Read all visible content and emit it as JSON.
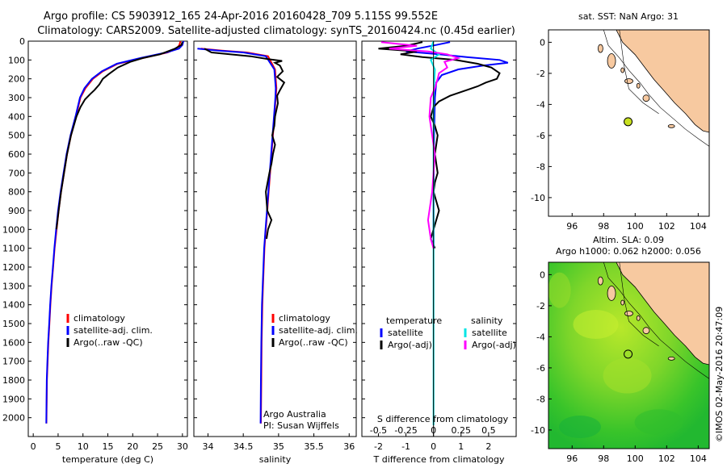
{
  "title": {
    "line1": "Argo profile: CS 5903912_165 24-Apr-2016 20160428_709 5.115S 99.552E",
    "line2": "Climatology: CARS2009. Satellite-adjusted climatology: synTS_20160424.nc (0.45d earlier)"
  },
  "credit": "©IMOS 02-May-2016 20:47:09",
  "colors": {
    "red": "#ff0000",
    "blue": "#0000ff",
    "black": "#000000",
    "cyan": "#00e5e5",
    "magenta": "#ff00ff",
    "land": "#f7c9a0",
    "sea_green": "#22cc22",
    "argo_dot": "#c8e020"
  },
  "chart_data": [
    {
      "id": "temperature",
      "type": "line",
      "xlabel": "temperature (deg C)",
      "ylabel": "",
      "xlim": [
        -1,
        31
      ],
      "ylim": [
        2100,
        0
      ],
      "xticks": [
        0,
        5,
        10,
        15,
        20,
        25,
        30
      ],
      "yticks": [
        0,
        100,
        200,
        300,
        400,
        500,
        600,
        700,
        800,
        900,
        1000,
        1100,
        1200,
        1300,
        1400,
        1500,
        1600,
        1700,
        1800,
        1900,
        2000
      ],
      "legend": [
        "climatology",
        "satellite-adj. clim.",
        "Argo(..raw -QC)"
      ],
      "series": [
        {
          "name": "climatology",
          "color": "red",
          "x": [
            29.6,
            29.4,
            28.8,
            27.0,
            22.0,
            17.0,
            14.0,
            12.0,
            10.5,
            9.5,
            8.6,
            7.6,
            6.8,
            6.2,
            5.6,
            5.1,
            4.7,
            4.3,
            4.0,
            3.7,
            3.45,
            3.25,
            3.05,
            2.9,
            2.75,
            2.65
          ],
          "y": [
            0,
            20,
            40,
            60,
            90,
            120,
            160,
            200,
            250,
            300,
            400,
            500,
            600,
            700,
            800,
            900,
            1000,
            1100,
            1200,
            1300,
            1400,
            1500,
            1600,
            1700,
            1800,
            2030
          ]
        },
        {
          "name": "satellite-adj. clim.",
          "color": "blue",
          "x": [
            30.2,
            30.0,
            29.3,
            26.8,
            21.5,
            16.8,
            13.8,
            11.8,
            10.3,
            9.4,
            8.5,
            7.5,
            6.7,
            6.1,
            5.5,
            5.0,
            4.6,
            4.25,
            3.95,
            3.65,
            3.4,
            3.2,
            3.0,
            2.85,
            2.72,
            2.62
          ],
          "y": [
            0,
            20,
            40,
            60,
            90,
            120,
            160,
            200,
            250,
            300,
            400,
            500,
            600,
            700,
            800,
            900,
            1000,
            1100,
            1200,
            1300,
            1400,
            1500,
            1600,
            1700,
            1800,
            2030
          ]
        },
        {
          "name": "Argo(..raw -QC)",
          "color": "black",
          "x": [
            30.0,
            29.8,
            28.5,
            25.5,
            22.0,
            19.5,
            17.0,
            15.2,
            14.0,
            13.3,
            12.3,
            11.5,
            10.4,
            9.5,
            8.7,
            7.6,
            6.8,
            6.2,
            5.6,
            5.1,
            4.65
          ],
          "y": [
            5,
            20,
            40,
            70,
            90,
            110,
            140,
            175,
            200,
            230,
            260,
            280,
            310,
            350,
            400,
            500,
            600,
            700,
            800,
            900,
            1000
          ]
        }
      ]
    },
    {
      "id": "salinity",
      "type": "line",
      "xlabel": "salinity",
      "xlim": [
        33.8,
        36.1
      ],
      "xticks": [
        34,
        34.5,
        35,
        35.5,
        36
      ],
      "xticklabels": [
        "34",
        "34.5",
        "35",
        "35.5",
        "36"
      ],
      "legend": [
        "climatology",
        "satellite-adj. clim.",
        "Argo(..raw -QC)"
      ],
      "annotation": [
        "Argo Australia",
        "PI: Susan Wijffels"
      ],
      "series": [
        {
          "name": "climatology",
          "color": "red",
          "x": [
            33.9,
            34.2,
            34.55,
            34.85,
            34.95,
            34.97,
            34.96,
            34.94,
            34.92,
            34.9,
            34.88,
            34.86,
            34.84,
            34.82,
            34.8,
            34.79,
            34.78,
            34.77,
            34.76,
            34.755,
            34.75
          ],
          "y": [
            40,
            50,
            60,
            80,
            150,
            250,
            300,
            400,
            500,
            600,
            700,
            800,
            900,
            1000,
            1100,
            1200,
            1300,
            1400,
            1600,
            1800,
            2030
          ]
        },
        {
          "name": "satellite-adj. clim.",
          "color": "blue",
          "x": [
            33.85,
            34.15,
            34.5,
            34.82,
            34.94,
            34.96,
            34.955,
            34.935,
            34.915,
            34.895,
            34.875,
            34.855,
            34.835,
            34.815,
            34.795,
            34.785,
            34.775,
            34.765,
            34.755,
            34.75,
            34.745
          ],
          "y": [
            40,
            50,
            60,
            80,
            150,
            250,
            300,
            400,
            500,
            600,
            700,
            800,
            900,
            1000,
            1100,
            1200,
            1300,
            1400,
            1600,
            1800,
            2030
          ]
        },
        {
          "name": "Argo(..raw -QC)",
          "color": "black",
          "x": [
            33.95,
            34.05,
            34.6,
            34.85,
            35.05,
            34.95,
            35.02,
            35.06,
            34.98,
            35.08,
            35.02,
            34.98,
            34.99,
            34.95,
            34.94,
            34.91,
            34.95,
            34.92,
            34.9,
            34.87,
            34.82,
            34.84,
            34.9,
            34.85,
            34.83
          ],
          "y": [
            40,
            60,
            80,
            95,
            105,
            115,
            130,
            160,
            190,
            220,
            260,
            290,
            330,
            400,
            450,
            500,
            550,
            600,
            650,
            700,
            800,
            900,
            950,
            1000,
            1050
          ]
        }
      ]
    },
    {
      "id": "difference",
      "type": "line",
      "xlabel": "T difference from climatology",
      "toplabel": "S difference from climatology",
      "xlim": [
        -2.6,
        3.0
      ],
      "xticks": [
        -2,
        -1,
        0,
        1,
        2
      ],
      "xticks_s": [
        -0.5,
        -0.25,
        0,
        0.25,
        0.5
      ],
      "xticklabels_s": [
        "-0.5",
        "-0.25",
        "0",
        "0.25",
        "0.5"
      ],
      "legend_title_t": "temperature",
      "legend_title_s": "salinity",
      "legend": [
        "satellite",
        "Argo(-adj)",
        "satellite",
        "Argo(-adj)"
      ],
      "series": [
        {
          "name": "T satellite",
          "color": "blue",
          "x": [
            0.6,
            0.1,
            -0.6,
            -1.0,
            0.2,
            1.2,
            2.4,
            2.7,
            1.8,
            0.9,
            0.3,
            0.1,
            0.05,
            0.02,
            0.0,
            0.0
          ],
          "y": [
            5,
            20,
            40,
            55,
            70,
            85,
            100,
            115,
            130,
            150,
            180,
            220,
            300,
            500,
            800,
            1100
          ]
        },
        {
          "name": "T Argo(-adj)",
          "color": "black",
          "x": [
            -0.4,
            -1.0,
            -2.0,
            -0.6,
            -1.2,
            -0.4,
            0.8,
            1.6,
            2.1,
            2.4,
            2.3,
            1.9,
            1.6,
            1.2,
            0.6,
            0.2,
            0.0,
            -0.1,
            0.05,
            0.15,
            0.05,
            0.15,
            0.05,
            0.0,
            0.1,
            0.2,
            0.1,
            0.0,
            -0.1,
            0.05
          ],
          "y": [
            5,
            25,
            40,
            55,
            70,
            85,
            100,
            120,
            140,
            170,
            200,
            220,
            240,
            260,
            290,
            320,
            350,
            400,
            450,
            500,
            600,
            700,
            750,
            800,
            850,
            900,
            950,
            1000,
            1050,
            1100
          ]
        },
        {
          "name": "S satellite",
          "color": "cyan",
          "x": [
            0.0,
            -0.1,
            0.2,
            -0.1,
            0.05,
            0.0,
            0.0,
            0.0,
            0.0
          ],
          "y": [
            0,
            40,
            70,
            100,
            150,
            300,
            800,
            1500,
            2040
          ]
        },
        {
          "name": "S Argo(-adj)",
          "color": "magenta",
          "x": [
            -1.9,
            -0.6,
            -1.6,
            -0.2,
            0.5,
            0.9,
            0.4,
            0.5,
            0.2,
            0.15,
            0.05,
            -0.1,
            -0.15,
            0.05,
            -0.05,
            -0.2,
            -0.1,
            0.0
          ],
          "y": [
            5,
            25,
            40,
            55,
            70,
            90,
            110,
            140,
            170,
            200,
            250,
            300,
            400,
            600,
            800,
            950,
            1050,
            1100
          ]
        }
      ]
    },
    {
      "id": "sst-map",
      "type": "map",
      "title": "sat. SST: NaN  Argo: 31",
      "xlim": [
        94.5,
        104.7
      ],
      "ylim": [
        -11.2,
        0.8
      ],
      "xticks": [
        96,
        98,
        100,
        102,
        104
      ],
      "yticks": [
        0,
        -2,
        -4,
        -6,
        -8,
        -10
      ],
      "argo_point": [
        99.552,
        -5.115
      ]
    },
    {
      "id": "sla-map",
      "type": "heatmap",
      "title": "Altim. SLA: 0.09",
      "subtitle": "Argo h1000: 0.062  h2000: 0.056",
      "xlim": [
        94.5,
        104.7
      ],
      "ylim": [
        -11.2,
        0.8
      ],
      "xticks": [
        96,
        98,
        100,
        102,
        104
      ],
      "yticks": [
        0,
        -2,
        -4,
        -6,
        -8,
        -10
      ],
      "argo_point": [
        99.552,
        -5.115
      ]
    }
  ]
}
